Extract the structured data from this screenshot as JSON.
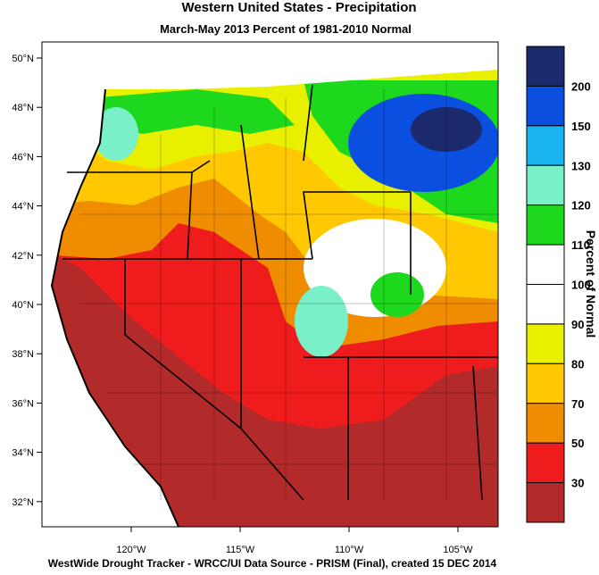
{
  "map": {
    "title": "Western United States - Precipitation",
    "subtitle": "March-May 2013  Percent of 1981-2010 Normal",
    "lat_labels": [
      "50°N",
      "48°N",
      "46°N",
      "44°N",
      "42°N",
      "40°N",
      "38°N",
      "36°N",
      "34°N",
      "32°N"
    ],
    "lon_labels": [
      "120°W",
      "115°W",
      "110°W",
      "105°W"
    ],
    "footer": "WestWide Drought Tracker - WRCC/UI  Data Source - PRISM (Final), created 15 DEC 2014"
  },
  "legend": {
    "title": "Percent of Normal",
    "levels": [
      200,
      150,
      130,
      120,
      110,
      100,
      90,
      80,
      70,
      50,
      30
    ],
    "colors": [
      "#1a2a6c",
      "#0a4fe0",
      "#1ab4f0",
      "#7af0c8",
      "#1ed81e",
      "#ffffff",
      "#ffffff",
      "#e8f000",
      "#ffc800",
      "#f08c00",
      "#ee1c1c",
      "#b32a2a"
    ]
  }
}
